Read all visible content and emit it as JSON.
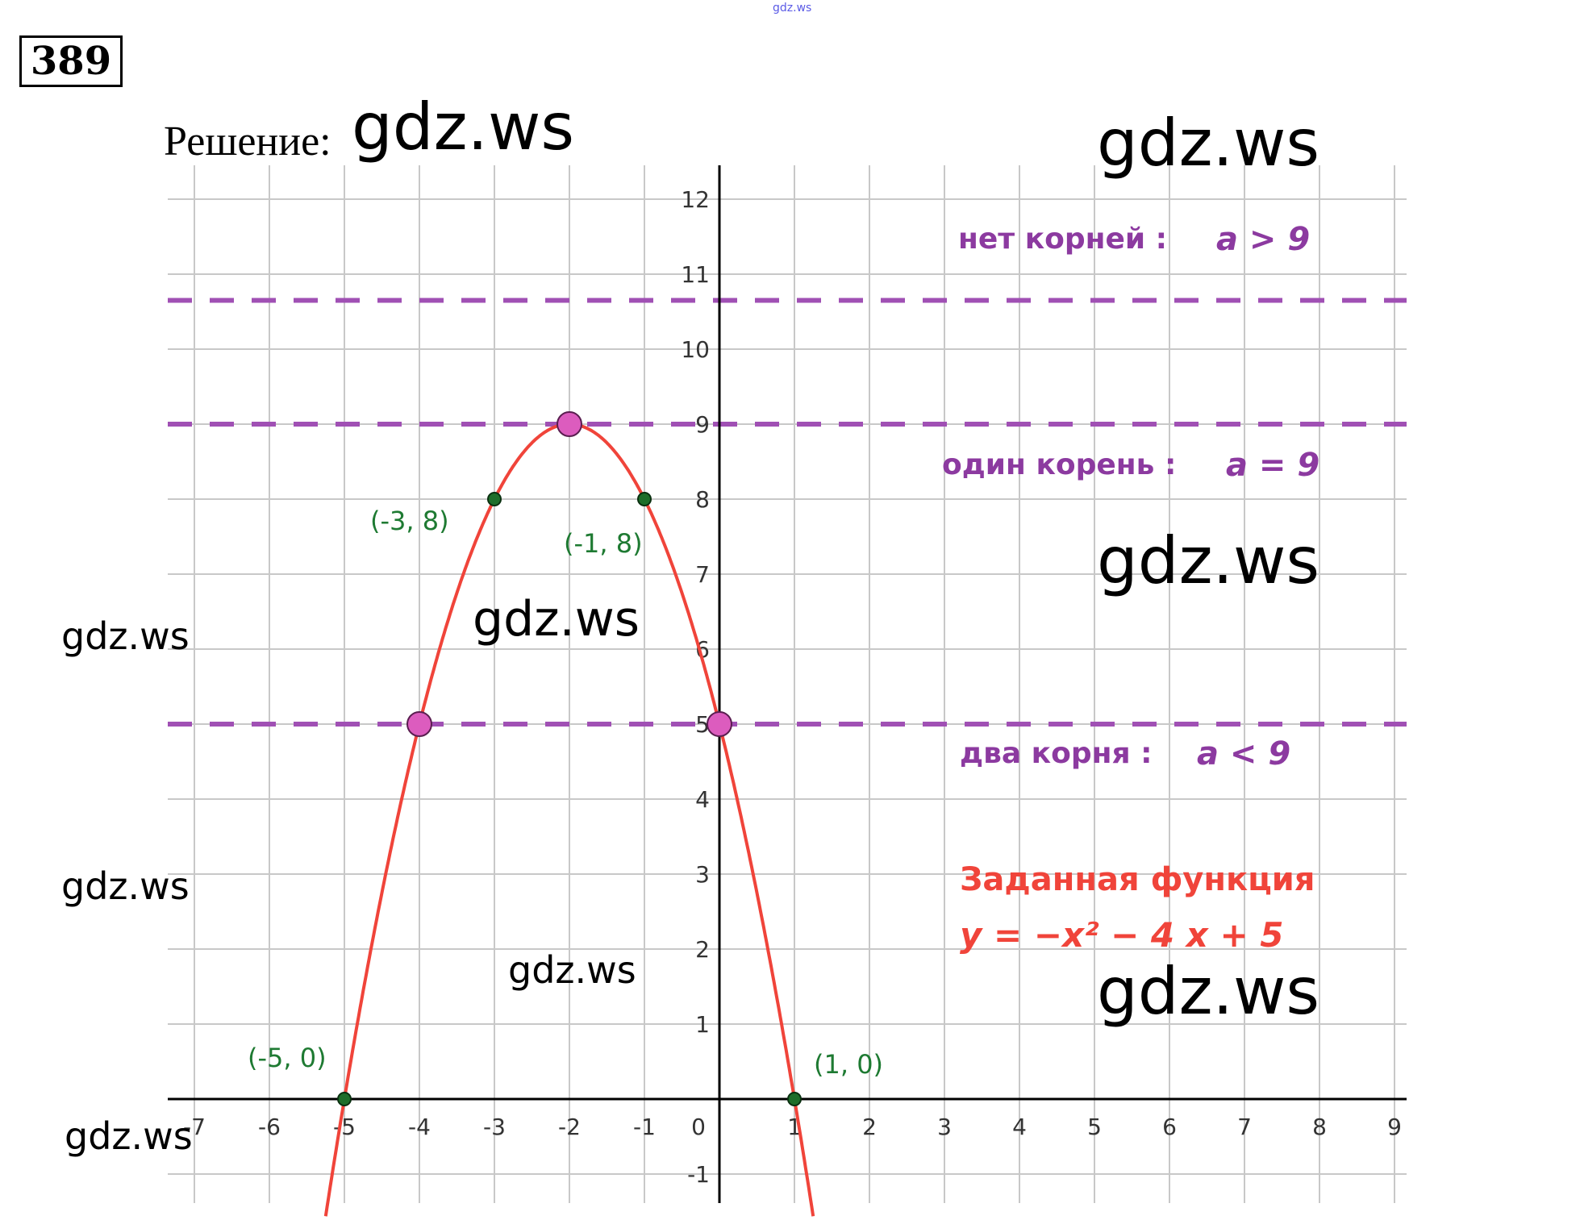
{
  "header": {
    "top_mark": "gdz.ws",
    "problem_number": "389",
    "solution_label": "Решение:"
  },
  "watermarks": {
    "w1": "gdz.ws",
    "w2": "gdz.ws",
    "w3": "gdz.ws",
    "w4": "gdz.ws",
    "w5": "gdz.ws",
    "w6": "gdz.ws",
    "w7": "gdz.ws",
    "w8": "gdz.ws",
    "w9": "gdz.ws"
  },
  "colors": {
    "grid": "#c8c8c8",
    "axis": "#000000",
    "curve": "#f0443a",
    "dashed_lines": "#a050b4",
    "big_points": "#dc5cbe",
    "small_points": "#1e6e2a",
    "point_labels": "#1e7a32",
    "region_labels": "#8c3aa0",
    "function_label": "#f0443a"
  },
  "chart_data": {
    "type": "line",
    "xlim": [
      -7,
      9
    ],
    "ylim": [
      -1,
      12
    ],
    "grid": true,
    "x_ticks": [
      "-7",
      "-6",
      "-5",
      "-4",
      "-3",
      "-2",
      "-1",
      "0",
      "1",
      "2",
      "3",
      "4",
      "5",
      "6",
      "7",
      "8",
      "9"
    ],
    "y_ticks": [
      "-1",
      "1",
      "2",
      "3",
      "4",
      "5",
      "6",
      "7",
      "8",
      "9",
      "10",
      "11",
      "12"
    ],
    "function": {
      "a": -1,
      "b": -4,
      "c": 5
    },
    "horizontal_lines": [
      10.65,
      9,
      5
    ],
    "big_points": [
      {
        "x": -2,
        "y": 9
      },
      {
        "x": -4,
        "y": 5
      },
      {
        "x": 0,
        "y": 5
      }
    ],
    "small_points": [
      {
        "x": -3,
        "y": 8,
        "label": "(-3, 8)"
      },
      {
        "x": -1,
        "y": 8,
        "label": "(-1, 8)"
      },
      {
        "x": -5,
        "y": 0,
        "label": "(-5, 0)"
      },
      {
        "x": 1,
        "y": 0,
        "label": "(1, 0)"
      }
    ],
    "annotations": {
      "no_roots": "нет корней :",
      "no_roots_cond": "a > 9",
      "one_root": "один корень :",
      "one_root_cond": "a = 9",
      "two_roots": "два корня :",
      "two_roots_cond": "a < 9",
      "function_title": "Заданная функция",
      "function_formula": "y = −x² − 4 x + 5"
    }
  }
}
